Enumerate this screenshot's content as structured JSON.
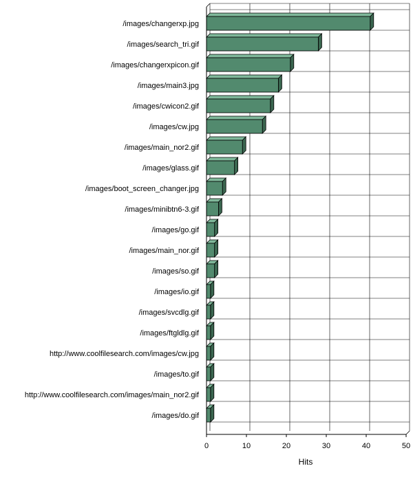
{
  "chart_data": {
    "type": "bar",
    "orientation": "horizontal",
    "categories": [
      "/images/changerxp.jpg",
      "/images/search_tri.gif",
      "/images/changerxpicon.gif",
      "/images/main3.jpg",
      "/images/cwicon2.gif",
      "/images/cw.jpg",
      "/images/main_nor2.gif",
      "/images/glass.gif",
      "/images/boot_screen_changer.jpg",
      "/images/minibtn6-3.gif",
      "/images/go.gif",
      "/images/main_nor.gif",
      "/images/so.gif",
      "/images/io.gif",
      "/images/svcdlg.gif",
      "/images/ftgldlg.gif",
      "http://www.coolfilesearch.com/images/cw.jpg",
      "/images/to.gif",
      "http://www.coolfilesearch.com/images/main_nor2.gif",
      "/images/do.gif"
    ],
    "values": [
      41,
      28,
      21,
      18,
      16,
      14,
      9,
      7,
      4,
      3,
      2,
      2,
      2,
      1,
      1,
      1,
      1,
      1,
      1,
      1
    ],
    "xlabel": "Hits",
    "xlim": [
      0,
      50
    ],
    "xticks": [
      0,
      10,
      20,
      30,
      40,
      50
    ],
    "grid": true,
    "bar_color": "#528a6e",
    "bar_top_color": "#7fb89a",
    "bar_side_color": "#3b6650"
  }
}
